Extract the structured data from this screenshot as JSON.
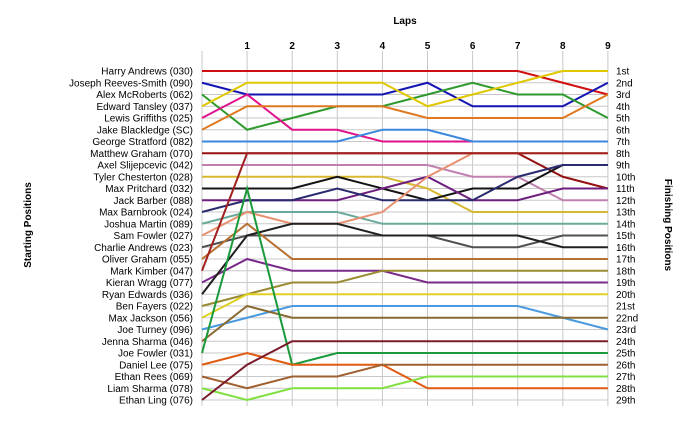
{
  "chart_data": {
    "type": "line",
    "title": "",
    "xlabel": "Laps",
    "ylabel_left": "Starting Positions",
    "ylabel_right": "Finishing Positions",
    "x": [
      0,
      1,
      2,
      3,
      4,
      5,
      6,
      7,
      8,
      9
    ],
    "x_tick_labels": [
      "1",
      "2",
      "3",
      "4",
      "5",
      "6",
      "7",
      "8",
      "9"
    ],
    "grid": true,
    "start_labels": [
      "Harry Andrews (030)",
      "Joseph Reeves-Smith (090)",
      "Alex McRoberts (062)",
      "Edward Tansley (037)",
      "Lewis Griffiths (025)",
      "Jake Blackledge (SC)",
      "George Stratford (082)",
      "Matthew Graham (070)",
      "Axel Slijepcevic (042)",
      "Tyler Chesterton (028)",
      "Max Pritchard (032)",
      "Jack Barber (088)",
      "Max Barnbrook (024)",
      "Joshua Martin (089)",
      "Sam Fowler (027)",
      "Charlie Andrews (023)",
      "Oliver Graham (055)",
      "Mark Kimber (047)",
      "Kieran Wragg (077)",
      "Ryan Edwards (036)",
      "Ben Fayers (022)",
      "Max Jackson (056)",
      "Joe Turney (096)",
      "Jenna Sharma (046)",
      "Joe Fowler (031)",
      "Daniel Lee (075)",
      "Ethan Rees (069)",
      "Liam Sharma (078)",
      "Ethan Ling (076)"
    ],
    "finish_labels": [
      "1st",
      "2nd",
      "3rd",
      "4th",
      "5th",
      "6th",
      "7th",
      "8th",
      "9th",
      "10th",
      "11th",
      "12th",
      "13th",
      "14th",
      "15th",
      "16th",
      "17th",
      "18th",
      "19th",
      "20th",
      "21st",
      "22nd",
      "23rd",
      "24th",
      "25th",
      "26th",
      "27th",
      "28th",
      "29th"
    ],
    "series": [
      {
        "color": "#d01010",
        "positions": [
          1,
          1,
          1,
          1,
          1,
          1,
          1,
          1,
          2,
          3
        ]
      },
      {
        "color": "#1414b4",
        "positions": [
          2,
          3,
          3,
          3,
          3,
          2,
          4,
          4,
          4,
          2
        ]
      },
      {
        "color": "#2e9a2e",
        "positions": [
          3,
          6,
          5,
          4,
          4,
          3,
          2,
          3,
          3,
          5
        ]
      },
      {
        "color": "#e0c800",
        "positions": [
          4,
          2,
          2,
          2,
          2,
          4,
          3,
          2,
          1,
          1
        ]
      },
      {
        "color": "#e0128c",
        "positions": [
          5,
          3,
          6,
          6,
          7,
          7,
          7,
          7,
          7,
          7
        ]
      },
      {
        "color": "#e07820",
        "positions": [
          6,
          4,
          4,
          4,
          4,
          5,
          5,
          5,
          5,
          3
        ]
      },
      {
        "color": "#3a88dd",
        "positions": [
          7,
          7,
          7,
          7,
          6,
          6,
          7,
          7,
          7,
          7
        ]
      },
      {
        "color": "#961010",
        "positions": [
          8,
          8,
          8,
          8,
          8,
          8,
          8,
          8,
          10,
          11
        ]
      },
      {
        "color": "#c080b0",
        "positions": [
          9,
          9,
          9,
          9,
          9,
          9,
          10,
          10,
          12,
          12
        ]
      },
      {
        "color": "#d8b830",
        "positions": [
          10,
          10,
          10,
          10,
          10,
          11,
          13,
          13,
          13,
          13
        ]
      },
      {
        "color": "#141414",
        "positions": [
          11,
          11,
          11,
          10,
          11,
          12,
          11,
          11,
          9,
          9
        ]
      },
      {
        "color": "#6e1e7e",
        "positions": [
          12,
          12,
          12,
          12,
          11,
          10,
          12,
          12,
          11,
          11
        ]
      },
      {
        "color": "#2a2a6e",
        "positions": [
          13,
          12,
          12,
          11,
          12,
          12,
          12,
          10,
          9,
          9
        ]
      },
      {
        "color": "#6aaa9a",
        "positions": [
          14,
          13,
          13,
          13,
          14,
          14,
          14,
          14,
          14,
          14
        ]
      },
      {
        "color": "#e89070",
        "positions": [
          15,
          13,
          14,
          14,
          13,
          10,
          8,
          8,
          8,
          8
        ]
      },
      {
        "color": "#505050",
        "positions": [
          16,
          15,
          15,
          15,
          15,
          15,
          16,
          16,
          15,
          15
        ]
      },
      {
        "color": "#b87030",
        "positions": [
          17,
          14,
          17,
          17,
          17,
          17,
          17,
          17,
          17,
          17
        ]
      },
      {
        "color": "#a02020",
        "positions": [
          18,
          8,
          8,
          8,
          8,
          8,
          8,
          8,
          8,
          8
        ]
      },
      {
        "color": "#7a2a8a",
        "positions": [
          19,
          17,
          18,
          18,
          18,
          19,
          19,
          19,
          19,
          19
        ]
      },
      {
        "color": "#202020",
        "positions": [
          20,
          15,
          14,
          14,
          15,
          15,
          15,
          15,
          16,
          16
        ]
      },
      {
        "color": "#9a8a30",
        "positions": [
          21,
          20,
          19,
          19,
          18,
          18,
          18,
          18,
          18,
          18
        ]
      },
      {
        "color": "#e0d020",
        "positions": [
          22,
          20,
          20,
          20,
          20,
          20,
          20,
          20,
          20,
          20
        ]
      },
      {
        "color": "#4a9ae0",
        "positions": [
          23,
          22,
          21,
          21,
          21,
          21,
          21,
          21,
          22,
          23
        ]
      },
      {
        "color": "#8a6a30",
        "positions": [
          24,
          21,
          22,
          22,
          22,
          22,
          22,
          22,
          22,
          22
        ]
      },
      {
        "color": "#1a9a3a",
        "positions": [
          25,
          11,
          26,
          25,
          25,
          25,
          25,
          25,
          25,
          25
        ]
      },
      {
        "color": "#e05a10",
        "positions": [
          26,
          25,
          26,
          26,
          26,
          28,
          28,
          28,
          28,
          28
        ]
      },
      {
        "color": "#a06030",
        "positions": [
          27,
          28,
          27,
          27,
          26,
          26,
          26,
          26,
          26,
          26
        ]
      },
      {
        "color": "#80e040",
        "positions": [
          28,
          29,
          28,
          28,
          28,
          27,
          27,
          27,
          27,
          27
        ]
      },
      {
        "color": "#7a1a2a",
        "positions": [
          29,
          26,
          24,
          24,
          24,
          24,
          24,
          24,
          24,
          24
        ]
      }
    ]
  }
}
